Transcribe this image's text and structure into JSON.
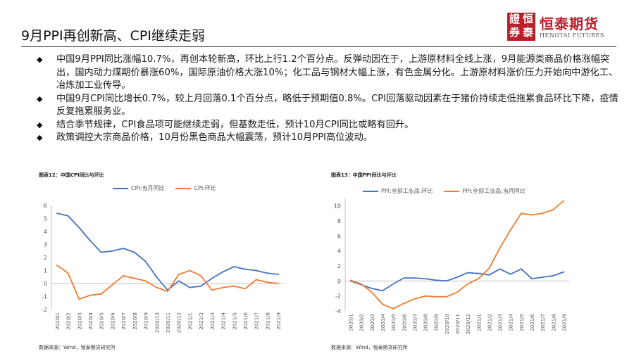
{
  "header": {
    "title": "9月PPI再创新高、CPI继续走弱",
    "logo_cn": "恒泰期货",
    "logo_en": "HENGTAI FUTURES",
    "logo_mark": [
      "證",
      "恒",
      "券",
      "泰"
    ]
  },
  "bullets": [
    "中国9月PPI同比涨幅10.7%，再创本轮新高，环比上行1.2个百分点。反弹动因在于，上游原材料全线上涨，9月能源类商品价格涨幅突出，国内动力煤期价暴涨60%，国际原油价格大涨10%；化工品与钢材大幅上涨，有色金属分化。上游原材料涨价压力开始向中游化工、冶炼加工业传导。",
    "中国9月CPI同比增长0.7%，较上月回落0.1个百分点，略低于预期值0.8%。CPI回落驱动因素在于猪价持续走低拖累食品环比下降，疫情反复拖累服务业。",
    "结合季节规律，CPI食品项可能继续走弱，但基数走低，预计10月CPI同比或略有回升。",
    "政策调控大宗商品价格，10月份黑色商品大幅震荡，预计10月PPI高位波动。"
  ],
  "colors": {
    "blue": "#4472c4",
    "orange": "#ed7d31",
    "brand": "#b8202a"
  },
  "chart_data": [
    {
      "type": "line",
      "caption": "图表12：中国CPI同比与环比",
      "source": "数据来源：Wind，恒泰期货研究所",
      "x": [
        "2020/1",
        "2020/2",
        "2020/3",
        "2020/4",
        "2020/5",
        "2020/6",
        "2020/7",
        "2020/8",
        "2020/9",
        "2020/10",
        "2020/11",
        "2020/12",
        "2021/1",
        "2021/2",
        "2021/3",
        "2021/4",
        "2021/5",
        "2021/6",
        "2021/7",
        "2021/8",
        "2021/9"
      ],
      "series": [
        {
          "name": "CPI:当月同比",
          "color": "#4472c4",
          "values": [
            5.4,
            5.2,
            4.3,
            3.3,
            2.4,
            2.5,
            2.7,
            2.4,
            1.7,
            0.5,
            -0.5,
            0.2,
            -0.3,
            -0.2,
            0.4,
            0.9,
            1.3,
            1.1,
            1.0,
            0.8,
            0.7
          ]
        },
        {
          "name": "CPI:环比",
          "color": "#ed7d31",
          "values": [
            1.4,
            0.8,
            -1.2,
            -0.9,
            -0.8,
            -0.1,
            0.6,
            0.4,
            0.2,
            -0.3,
            -0.6,
            0.7,
            1.0,
            0.6,
            -0.5,
            -0.3,
            -0.2,
            -0.4,
            0.3,
            0.1,
            0.0
          ]
        }
      ],
      "yticks": [
        -2,
        -1,
        0,
        1,
        2,
        3,
        4,
        5,
        6
      ],
      "ylim": [
        -2,
        6
      ]
    },
    {
      "type": "line",
      "caption": "图表13：中国PPI同比与环比",
      "source": "数据来源：Wind，恒泰期货研究所",
      "x": [
        "2020/1",
        "2020/2",
        "2020/3",
        "2020/4",
        "2020/5",
        "2020/6",
        "2020/7",
        "2020/8",
        "2020/9",
        "2020/10",
        "2020/11",
        "2020/12",
        "2021/1",
        "2021/2",
        "2021/3",
        "2021/4",
        "2021/5",
        "2021/6",
        "2021/7",
        "2021/8",
        "2021/9"
      ],
      "series": [
        {
          "name": "PPI:全部工业品:环比",
          "color": "#4472c4",
          "values": [
            0.0,
            -0.5,
            -1.0,
            -1.3,
            -0.4,
            0.4,
            0.4,
            0.3,
            0.1,
            0.0,
            0.5,
            1.1,
            1.0,
            0.8,
            1.6,
            0.9,
            1.6,
            0.3,
            0.5,
            0.7,
            1.2
          ]
        },
        {
          "name": "PPI:全部工业品:当月同比",
          "color": "#ed7d31",
          "values": [
            0.1,
            -0.4,
            -1.5,
            -3.1,
            -3.7,
            -3.0,
            -2.4,
            -2.0,
            -2.1,
            -2.1,
            -1.5,
            -0.4,
            0.3,
            1.7,
            4.4,
            6.8,
            9.0,
            8.8,
            9.0,
            9.5,
            10.7
          ]
        }
      ],
      "yticks": [
        -4,
        -2,
        0,
        2,
        4,
        6,
        8,
        10
      ],
      "ylim": [
        -4,
        11
      ]
    }
  ]
}
